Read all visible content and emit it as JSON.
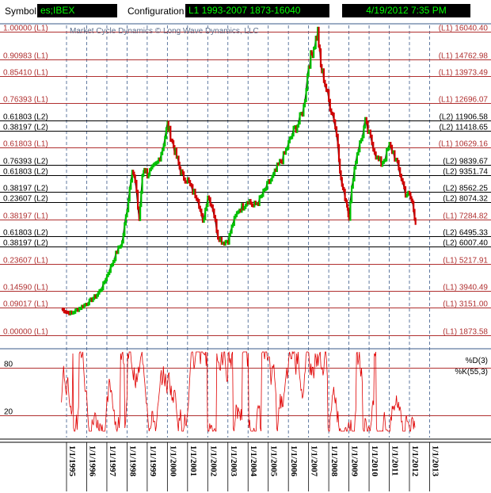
{
  "toolbar": {
    "symbol_label": "Symbol",
    "symbol_value": "es;IBEX",
    "config_label": "Configuration",
    "config_value": "L1 1993-2007 1873-16040",
    "datetime_value": "4/19/2012 7:35 PM"
  },
  "chart_data": {
    "type": "line",
    "title": "",
    "watermark": "Market Cycle Dynamics © Long Wave Dynamics, LLC",
    "price_panel": {
      "ylim": [
        1873.58,
        16040.4
      ],
      "levels": [
        {
          "left": "1.00000  (L1)",
          "right": "(L1) 16040.40",
          "value": 16040.4,
          "color": "#b03030"
        },
        {
          "left": "0.90983  (L1)",
          "right": "(L1) 14762.98",
          "value": 14762.98,
          "color": "#b03030"
        },
        {
          "left": "0.85410  (L1)",
          "right": "(L1) 13973.49",
          "value": 13973.49,
          "color": "#b03030"
        },
        {
          "left": "0.76393  (L1)",
          "right": "(L1) 12696.07",
          "value": 12696.07,
          "color": "#b03030"
        },
        {
          "left": "0.61803  (L2)",
          "right": "(L2) 11906.58",
          "value": 11906.58,
          "color": "#000000"
        },
        {
          "left": "0.38197  (L2)",
          "right": "(L2) 11418.65",
          "value": 11418.65,
          "color": "#000000"
        },
        {
          "left": "0.61803  (L1)",
          "right": "(L1) 10629.16",
          "value": 10629.16,
          "color": "#b03030"
        },
        {
          "left": "0.76393  (L2)",
          "right": "(L2) 9839.67",
          "value": 9839.67,
          "color": "#000000"
        },
        {
          "left": "0.61803  (L2)",
          "right": "(L2) 9351.74",
          "value": 9351.74,
          "color": "#000000"
        },
        {
          "left": "0.38197  (L2)",
          "right": "(L2) 8562.25",
          "value": 8562.25,
          "color": "#000000"
        },
        {
          "left": "0.23607  (L2)",
          "right": "(L2) 8074.32",
          "value": 8074.32,
          "color": "#000000"
        },
        {
          "left": "0.38197  (L1)",
          "right": "(L1) 7284.82",
          "value": 7284.82,
          "color": "#b03030"
        },
        {
          "left": "0.61803  (L2)",
          "right": "(L2) 6495.33",
          "value": 6495.33,
          "color": "#000000"
        },
        {
          "left": "0.38197  (L2)",
          "right": "(L2) 6007.40",
          "value": 6007.4,
          "color": "#000000"
        },
        {
          "left": "0.23607  (L1)",
          "right": "(L1) 5217.91",
          "value": 5217.91,
          "color": "#b03030"
        },
        {
          "left": "0.14590  (L1)",
          "right": "(L1) 3940.49",
          "value": 3940.49,
          "color": "#b03030"
        },
        {
          "left": "0.09017  (L1)",
          "right": "(L1) 3151.00",
          "value": 3151.0,
          "color": "#b03030"
        },
        {
          "left": "0.00000  (L1)",
          "right": "(L1) 1873.58",
          "value": 1873.58,
          "color": "#b03030"
        }
      ],
      "series": {
        "x": [
          1994.75,
          1995.0,
          1995.25,
          1995.5,
          1995.75,
          1996.0,
          1996.25,
          1996.5,
          1996.75,
          1997.0,
          1997.25,
          1997.5,
          1997.75,
          1998.0,
          1998.25,
          1998.4,
          1998.6,
          1998.75,
          1998.85,
          1999.0,
          1999.25,
          1999.5,
          1999.75,
          2000.0,
          2000.15,
          2000.3,
          2000.45,
          2000.6,
          2000.75,
          2001.0,
          2001.25,
          2001.5,
          2001.75,
          2002.0,
          2002.25,
          2002.5,
          2002.75,
          2003.0,
          2003.25,
          2003.5,
          2003.75,
          2004.0,
          2004.25,
          2004.5,
          2004.75,
          2005.0,
          2005.25,
          2005.5,
          2005.75,
          2006.0,
          2006.25,
          2006.5,
          2006.75,
          2007.0,
          2007.15,
          2007.3,
          2007.45,
          2007.6,
          2007.75,
          2008.0,
          2008.25,
          2008.45,
          2008.6,
          2008.75,
          2008.9,
          2009.0,
          2009.2,
          2009.4,
          2009.6,
          2009.8,
          2010.0,
          2010.2,
          2010.4,
          2010.6,
          2010.8,
          2011.0,
          2011.2,
          2011.4,
          2011.6,
          2011.8,
          2012.0,
          2012.15,
          2012.3
        ],
        "y": [
          3100,
          2950,
          2900,
          3050,
          3200,
          3350,
          3550,
          3750,
          4100,
          4650,
          5200,
          5800,
          6200,
          7800,
          9700,
          9000,
          7300,
          9200,
          9700,
          9400,
          9600,
          9900,
          10600,
          11700,
          11200,
          10700,
          10200,
          9700,
          9300,
          9100,
          8600,
          8300,
          7100,
          8400,
          7800,
          6500,
          6200,
          6300,
          7100,
          7700,
          7900,
          8200,
          7900,
          8100,
          8500,
          8950,
          9300,
          9800,
          10200,
          10800,
          11400,
          11800,
          12500,
          14500,
          15000,
          15500,
          16040,
          14400,
          13900,
          12800,
          12000,
          10800,
          9100,
          8500,
          8000,
          7400,
          9300,
          10400,
          11000,
          11800,
          11200,
          10700,
          10100,
          9900,
          10200,
          10700,
          10400,
          9800,
          9200,
          8500,
          8400,
          8050,
          7100
        ]
      }
    },
    "oscillator_panel": {
      "levels": [
        {
          "label": "80",
          "value": 80
        },
        {
          "label": "20",
          "value": 20
        }
      ],
      "legend": [
        "%D(3)",
        "%K(55,3)"
      ],
      "ylim": [
        0,
        100
      ]
    },
    "x_axis": {
      "tick_labels": [
        "1/1/1995",
        "1/1/1996",
        "1/1/1997",
        "1/1/1998",
        "1/1/1999",
        "1/1/2000",
        "1/1/2001",
        "1/1/2002",
        "1/1/2003",
        "1/1/2004",
        "1/1/2005",
        "1/1/2006",
        "1/1/2007",
        "1/1/2008",
        "1/1/2009",
        "1/1/2010",
        "1/1/2011",
        "1/1/2012",
        "1/1/2013"
      ],
      "tick_years": [
        1995,
        1996,
        1997,
        1998,
        1999,
        2000,
        2001,
        2002,
        2003,
        2004,
        2005,
        2006,
        2007,
        2008,
        2009,
        2010,
        2011,
        2012,
        2013
      ]
    },
    "colors": {
      "up_bar": "#00c000",
      "down_bar": "#d00000",
      "price_line": "#000000",
      "oscillator": "#e00000",
      "l1_level": "#b03030",
      "l2_level": "#000000",
      "grid": "#3a5a8a"
    }
  }
}
